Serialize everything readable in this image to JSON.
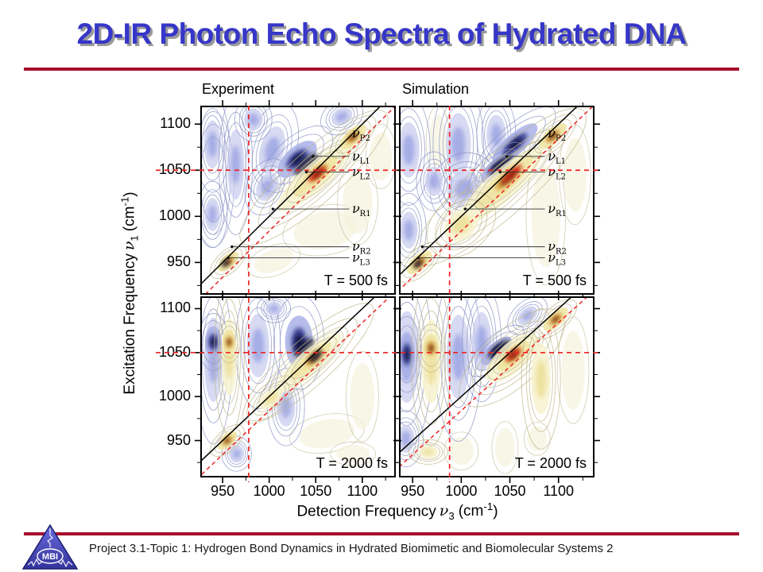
{
  "slide": {
    "title": "2D-IR Photon Echo Spectra of Hydrated DNA",
    "title_color": "#3636c8",
    "rule_color": "#a60c2c",
    "footer": {
      "text": "Project 3.1-Topic 1: Hydrogen Bond Dynamics in Hydrated Biomimetic and Biomolecular Systems 2",
      "logo_text": "MBI"
    }
  },
  "chart_data": {
    "type": "heatmap",
    "subtype": "2D-IR photon-echo contour spectra, 2x2 panel grid",
    "columns": [
      "Experiment",
      "Simulation"
    ],
    "x_axis": {
      "label_text": "Detection Frequency",
      "symbol": "ν",
      "symbol_sub": "3",
      "unit_pre": "(cm",
      "unit_sup": "-1",
      "unit_post": ")",
      "ticks": [
        950,
        1000,
        1050,
        1100
      ]
    },
    "y_axis": {
      "label_text": "Excitation Frequency",
      "symbol": "ν",
      "symbol_sub": "1",
      "unit_pre": "(cm",
      "unit_sup": "-1",
      "unit_post": ")",
      "ticks": [
        950,
        1000,
        1050,
        1100
      ]
    },
    "layout_hints": {
      "x_ranges": [
        [
          926,
          1136
        ],
        [
          936,
          1137
        ]
      ],
      "y_ranges": [
        [
          915,
          1120
        ],
        [
          908,
          1114
        ]
      ],
      "minor_ticks": [
        925,
        975,
        1025,
        1075,
        1125
      ],
      "grid": false
    },
    "colormap": {
      "negative_blue": "#9aa2e0",
      "positive_yellow": "#f0e9b0",
      "hot_red": "#cc3020"
    },
    "guides": {
      "diagonal": "nu1 = nu3",
      "red_dashed_horizontal_cm1": 1050,
      "red_dashed_vertical_cm1": {
        "experiment": 978,
        "simulation": 988
      },
      "red_dashed_diagonal_offset_cm1": -16
    },
    "annotations": [
      {
        "symbol": "ν",
        "sub": "P2",
        "freq_cm1": 1090,
        "line_start": null
      },
      {
        "symbol": "ν",
        "sub": "L1",
        "freq_cm1": 1065,
        "line_start": 1047
      },
      {
        "symbol": "ν",
        "sub": "L2",
        "freq_cm1": 1048,
        "line_start": 1040
      },
      {
        "symbol": "ν",
        "sub": "R1",
        "freq_cm1": 1008,
        "line_start": 1004
      },
      {
        "symbol": "ν",
        "sub": "R2",
        "freq_cm1": 967,
        "line_start": 960
      },
      {
        "symbol": "ν",
        "sub": "L3",
        "freq_cm1": 955,
        "line_start": 956
      }
    ],
    "panels": [
      {
        "id": "experiment-500fs",
        "col": 0,
        "row": 0,
        "time_label": "T = 500 fs",
        "annotated": true,
        "vline": 978,
        "features": [
          [
            "t",
            1060,
            985,
            34,
            20,
            -10
          ],
          [
            "t",
            1095,
            1015,
            16,
            34,
            0
          ],
          [
            "t",
            1005,
            952,
            22,
            12,
            -20
          ],
          [
            "t",
            1120,
            1065,
            12,
            26,
            0
          ],
          [
            "b",
            939,
            1078,
            9,
            26,
            0
          ],
          [
            "b",
            939,
            1002,
            8,
            18,
            0
          ],
          [
            "o",
            940,
            1040,
            14,
            46,
            0
          ],
          [
            "b",
            964,
            1056,
            9,
            38,
            0
          ],
          [
            "b",
            1003,
            1072,
            13,
            26,
            15
          ],
          [
            "b",
            998,
            1032,
            11,
            16,
            25
          ],
          [
            "b",
            983,
            1105,
            10,
            12,
            0
          ],
          [
            "B",
            1030,
            1062,
            26,
            13,
            -42
          ],
          [
            "D",
            1040,
            1056,
            16,
            7,
            -42
          ],
          [
            "b",
            1078,
            1108,
            12,
            9,
            -30
          ],
          [
            "y",
            1048,
            1042,
            52,
            14,
            -42
          ],
          [
            "Y",
            1053,
            1047,
            26,
            9,
            -42
          ],
          [
            "R",
            1051,
            1046,
            12,
            4,
            -42
          ],
          [
            "Y",
            1090,
            1086,
            18,
            8,
            -42
          ],
          [
            "Y",
            956,
            951,
            14,
            7,
            -42
          ],
          [
            "D",
            953,
            949,
            5,
            3,
            -42
          ]
        ]
      },
      {
        "id": "simulation-500fs",
        "col": 1,
        "row": 0,
        "time_label": "T = 500 fs",
        "annotated": true,
        "vline": 988,
        "features": [
          [
            "t",
            1087,
            1000,
            15,
            55,
            0
          ],
          [
            "t",
            1117,
            1045,
            12,
            40,
            0
          ],
          [
            "t",
            976,
            1082,
            9,
            28,
            0
          ],
          [
            "b",
            946,
            1072,
            11,
            30,
            0
          ],
          [
            "b",
            946,
            985,
            9,
            20,
            0
          ],
          [
            "b",
            997,
            1078,
            13,
            34,
            0
          ],
          [
            "b",
            1036,
            1088,
            10,
            22,
            0
          ],
          [
            "b",
            1003,
            1030,
            17,
            20,
            30
          ],
          [
            "b",
            972,
            1038,
            9,
            16,
            0
          ],
          [
            "B",
            1055,
            1078,
            30,
            11,
            -42
          ],
          [
            "B",
            1036,
            1052,
            20,
            9,
            -42
          ],
          [
            "D",
            1042,
            1056,
            14,
            6,
            -42
          ],
          [
            "y",
            1040,
            1032,
            58,
            16,
            -42
          ],
          [
            "Y",
            1048,
            1041,
            34,
            10,
            -42
          ],
          [
            "R",
            1052,
            1046,
            14,
            4,
            -42
          ],
          [
            "y",
            1000,
            991,
            20,
            15,
            -42
          ],
          [
            "Y",
            957,
            950,
            16,
            8,
            -42
          ],
          [
            "D",
            955,
            948,
            5,
            3,
            -42
          ],
          [
            "Y",
            1094,
            1087,
            18,
            8,
            -42
          ]
        ]
      },
      {
        "id": "experiment-2000fs",
        "col": 0,
        "row": 1,
        "time_label": "T = 2000 fs",
        "annotated": false,
        "vline": 978,
        "features": [
          [
            "t",
            1062,
            958,
            30,
            16,
            -10
          ],
          [
            "t",
            1100,
            1000,
            13,
            38,
            0
          ],
          [
            "t",
            1090,
            935,
            18,
            10,
            0
          ],
          [
            "b",
            940,
            1042,
            10,
            48,
            0
          ],
          [
            "B",
            940,
            1062,
            9,
            18,
            0
          ],
          [
            "b",
            988,
            1058,
            12,
            36,
            0
          ],
          [
            "b",
            1018,
            988,
            10,
            22,
            0
          ],
          [
            "B",
            1032,
            1062,
            15,
            30,
            0
          ],
          [
            "D",
            1038,
            1056,
            13,
            7,
            -42
          ],
          [
            "b",
            965,
            935,
            8,
            10,
            0
          ],
          [
            "b",
            1005,
            1100,
            9,
            8,
            0
          ],
          [
            "y",
            957,
            1045,
            8,
            44,
            0
          ],
          [
            "Y",
            957,
            1062,
            7,
            14,
            0
          ],
          [
            "y",
            1042,
            1038,
            46,
            13,
            -42
          ],
          [
            "Y",
            1048,
            1044,
            24,
            8,
            -42
          ],
          [
            "D",
            1050,
            1046,
            9,
            4,
            -42
          ],
          [
            "Y",
            955,
            950,
            13,
            7,
            -42
          ],
          [
            "y",
            1002,
            998,
            16,
            8,
            -42
          ]
        ]
      },
      {
        "id": "simulation-2000fs",
        "col": 1,
        "row": 1,
        "time_label": "T = 2000 fs",
        "annotated": false,
        "vline": 988,
        "features": [
          [
            "t",
            1000,
            938,
            13,
            16,
            0
          ],
          [
            "t",
            1045,
            942,
            10,
            22,
            0
          ],
          [
            "t",
            1078,
            952,
            10,
            14,
            0
          ],
          [
            "t",
            1115,
            1030,
            12,
            45,
            0
          ],
          [
            "b",
            944,
            1045,
            13,
            52,
            0
          ],
          [
            "B",
            944,
            1048,
            8,
            24,
            0
          ],
          [
            "b",
            997,
            1045,
            12,
            48,
            0
          ],
          [
            "b",
            1021,
            1062,
            10,
            34,
            0
          ],
          [
            "b",
            943,
            952,
            9,
            16,
            0
          ],
          [
            "B",
            1036,
            1052,
            20,
            9,
            -42
          ],
          [
            "D",
            1040,
            1054,
            13,
            6,
            -42
          ],
          [
            "b",
            1068,
            1092,
            12,
            8,
            -42
          ],
          [
            "y",
            969,
            1040,
            10,
            48,
            0
          ],
          [
            "Y",
            969,
            1055,
            8,
            16,
            0
          ],
          [
            "y",
            1052,
            1044,
            34,
            16,
            -42
          ],
          [
            "Y",
            1054,
            1047,
            20,
            9,
            -42
          ],
          [
            "R",
            1053,
            1048,
            10,
            4,
            -42
          ],
          [
            "y",
            1082,
            1020,
            10,
            40,
            0
          ],
          [
            "Y",
            1097,
            1088,
            16,
            8,
            -42
          ],
          [
            "y",
            966,
            937,
            10,
            7,
            0
          ]
        ]
      }
    ]
  }
}
